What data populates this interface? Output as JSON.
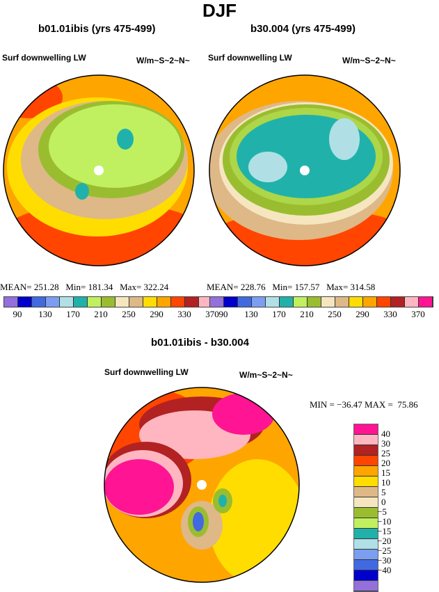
{
  "title": "DJF",
  "panels": [
    {
      "title": "b01.01ibis (yrs 475-499)",
      "variable": "Surf downwelling LW",
      "units": "W/m~S~2~N~",
      "stats": "MEAN= 251.28   Min= 181.34   Max= 322.24"
    },
    {
      "title": "b30.004 (yrs 475-499)",
      "variable": "Surf downwelling LW",
      "units": "W/m~S~2~N~",
      "stats": "MEAN= 228.76   Min= 157.57   Max= 314.58"
    }
  ],
  "colorbar": {
    "colors": [
      "#9370DB",
      "#0000CD",
      "#4169E1",
      "#7B9EF0",
      "#B0E0E6",
      "#20B2AA",
      "#C0F060",
      "#9ABD30",
      "#F5E6C0",
      "#DEB887",
      "#FFDD00",
      "#FFA500",
      "#FF4500",
      "#B22222",
      "#FFB6C1",
      "#FF1493"
    ],
    "labels": [
      "90",
      "130",
      "170",
      "210",
      "250",
      "290",
      "330",
      "370"
    ]
  },
  "diff": {
    "title": "b01.01ibis - b30.004",
    "variable": "Surf downwelling LW",
    "units": "W/m~S~2~N~",
    "stats": "MIN = −36.47 MAX =  75.86",
    "colors": [
      "#FF1493",
      "#FFB6C1",
      "#B22222",
      "#FF4500",
      "#FFA500",
      "#FFDD00",
      "#DEB887",
      "#F5E6C0",
      "#9ABD30",
      "#C0F060",
      "#20B2AA",
      "#B0E0E6",
      "#7B9EF0",
      "#4169E1",
      "#0000CD",
      "#9370DB"
    ],
    "labels": [
      "40",
      "30",
      "25",
      "20",
      "15",
      "10",
      "5",
      "0",
      "−5",
      "−10",
      "−15",
      "−20",
      "−25",
      "−30",
      "−40"
    ]
  }
}
